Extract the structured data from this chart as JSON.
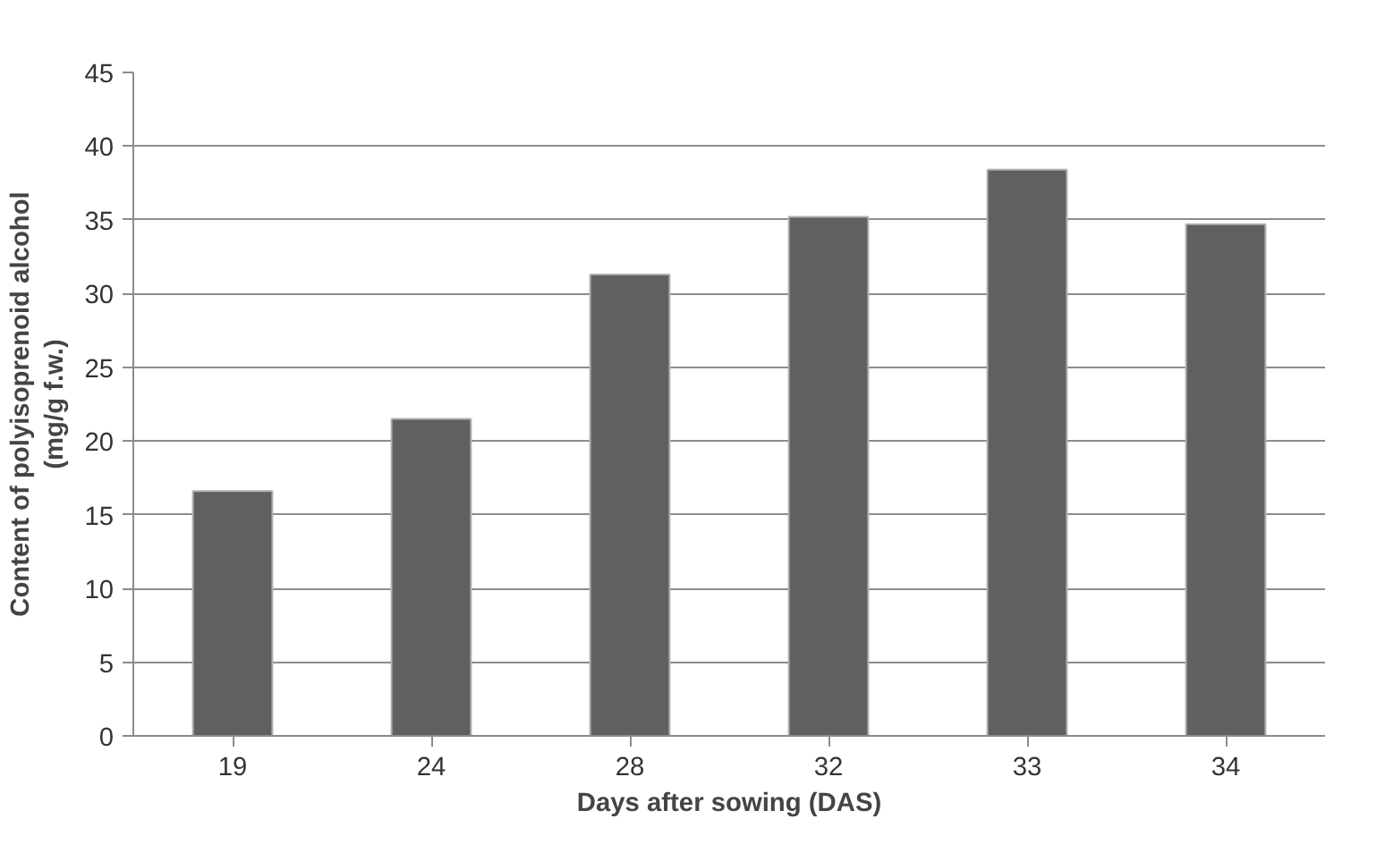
{
  "chart_data": {
    "type": "bar",
    "xlabel": "Days after sowing (DAS)",
    "ylabel": "Content of polyisoprenoid alcohol\n(mg/g f.w.)",
    "categories": [
      "19",
      "24",
      "28",
      "32",
      "33",
      "34"
    ],
    "values": [
      16.6,
      21.5,
      31.3,
      35.2,
      38.4,
      34.7
    ],
    "color": "#606060",
    "ylim": [
      0,
      45
    ],
    "yticks": [
      0,
      5,
      10,
      15,
      20,
      25,
      30,
      35,
      40,
      45
    ],
    "grid": "y"
  }
}
